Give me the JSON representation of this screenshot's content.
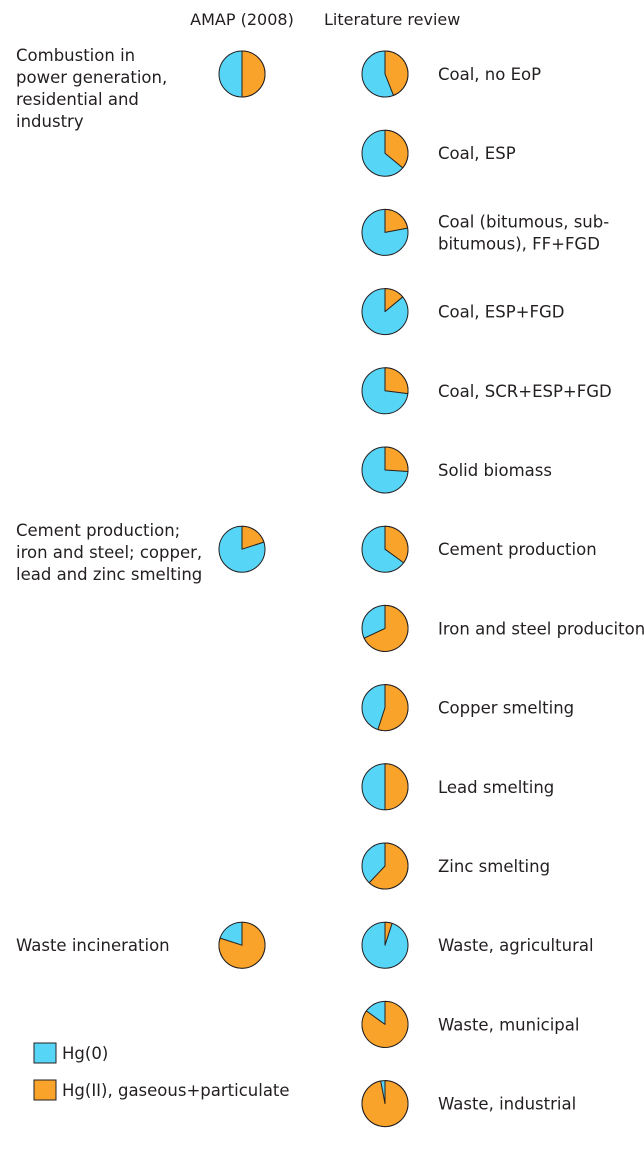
{
  "colors": {
    "hg0": "#56d5f7",
    "hg2": "#f9a32a",
    "stroke": "#231f20"
  },
  "chart_data": {
    "type": "pie",
    "title": "",
    "column_headers": {
      "amap": "AMAP (2008)",
      "literature": "Literature review"
    },
    "legend": [
      {
        "label": "Hg(0)",
        "color": "#56d5f7"
      },
      {
        "label": "Hg(II), gaseous+particulate",
        "color": "#f9a32a"
      }
    ],
    "amap_groups": [
      {
        "lines": [
          "Combustion in",
          "power generation,",
          "residential and",
          "industry"
        ],
        "row": 0,
        "hg0": 0.5,
        "hg2": 0.5
      },
      {
        "lines": [
          "Cement production;",
          "iron and steel; copper,",
          "lead and zinc smelting"
        ],
        "row": 6,
        "hg0": 0.8,
        "hg2": 0.2
      },
      {
        "lines": [
          "Waste incineration"
        ],
        "row": 11,
        "hg0": 0.2,
        "hg2": 0.8
      }
    ],
    "literature": [
      {
        "lines": [
          "Coal, no EoP"
        ],
        "hg0": 0.56,
        "hg2": 0.44
      },
      {
        "lines": [
          "Coal, ESP"
        ],
        "hg0": 0.64,
        "hg2": 0.36
      },
      {
        "lines": [
          "Coal (bitumous, sub-",
          "bitumous), FF+FGD"
        ],
        "hg0": 0.78,
        "hg2": 0.22
      },
      {
        "lines": [
          "Coal, ESP+FGD"
        ],
        "hg0": 0.86,
        "hg2": 0.14
      },
      {
        "lines": [
          "Coal, SCR+ESP+FGD"
        ],
        "hg0": 0.73,
        "hg2": 0.27
      },
      {
        "lines": [
          "Solid biomass"
        ],
        "hg0": 0.74,
        "hg2": 0.26
      },
      {
        "lines": [
          "Cement production"
        ],
        "hg0": 0.65,
        "hg2": 0.35
      },
      {
        "lines": [
          "Iron and steel produciton"
        ],
        "hg0": 0.32,
        "hg2": 0.68
      },
      {
        "lines": [
          "Copper smelting"
        ],
        "hg0": 0.45,
        "hg2": 0.55
      },
      {
        "lines": [
          "Lead smelting"
        ],
        "hg0": 0.5,
        "hg2": 0.5
      },
      {
        "lines": [
          "Zinc smelting"
        ],
        "hg0": 0.38,
        "hg2": 0.62
      },
      {
        "lines": [
          "Waste, agricultural"
        ],
        "hg0": 0.95,
        "hg2": 0.05
      },
      {
        "lines": [
          "Waste, municipal"
        ],
        "hg0": 0.15,
        "hg2": 0.85
      },
      {
        "lines": [
          "Waste, industrial"
        ],
        "hg0": 0.03,
        "hg2": 0.97
      }
    ]
  }
}
